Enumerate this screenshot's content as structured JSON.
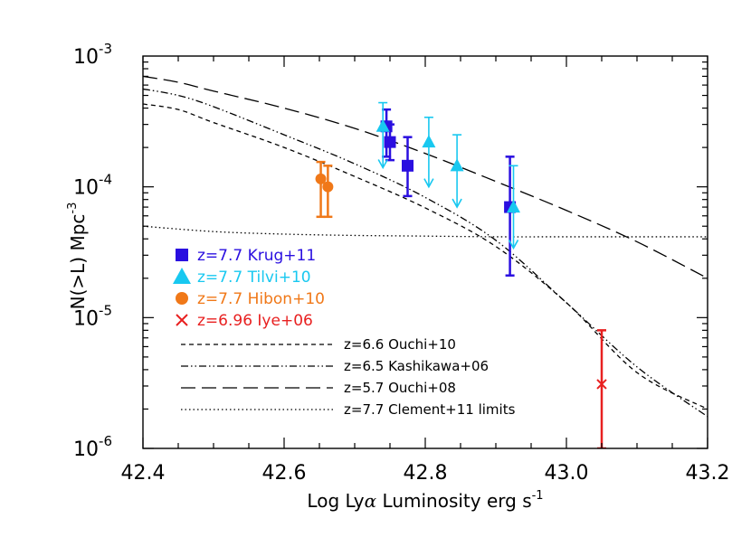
{
  "chart_data": {
    "type": "scatter",
    "xlabel_prefix": "Log Ly",
    "xlabel_greek": "α",
    "xlabel_suffix": " Luminosity erg s",
    "xlabel_exp": "-1",
    "ylabel_main": "N(>L) Mpc",
    "ylabel_exp": "-3",
    "xlim": [
      42.4,
      43.2
    ],
    "ylim_log10": [
      -6,
      -3
    ],
    "x_ticks": [
      {
        "value": 42.4,
        "label": "42.4"
      },
      {
        "value": 42.6,
        "label": "42.6"
      },
      {
        "value": 42.8,
        "label": "42.8"
      },
      {
        "value": 43.0,
        "label": "43.0"
      },
      {
        "value": 43.2,
        "label": "43.2"
      }
    ],
    "y_ticks": [
      {
        "exp": -3,
        "base": "10",
        "sup": "-3"
      },
      {
        "exp": -4,
        "base": "10",
        "sup": "-4"
      },
      {
        "exp": -5,
        "base": "10",
        "sup": "-5"
      },
      {
        "exp": -6,
        "base": "10",
        "sup": "-6"
      }
    ],
    "point_series": [
      {
        "name": "z=7.7 Krug+11",
        "marker": "square",
        "color": "#2a0fe0",
        "points": [
          {
            "x": 42.745,
            "y": 0.00029,
            "lo": 0.00017,
            "hi": 0.00039
          },
          {
            "x": 42.75,
            "y": 0.00022,
            "lo": 0.00016,
            "hi": 0.0003
          },
          {
            "x": 42.775,
            "y": 0.000145,
            "lo": 8.5e-05,
            "hi": 0.00024
          },
          {
            "x": 42.92,
            "y": 7e-05,
            "lo": 2.1e-05,
            "hi": 0.00017
          }
        ]
      },
      {
        "name": "z=7.7 Tilvi+10",
        "marker": "triangle",
        "color": "#18c8f0",
        "points": [
          {
            "x": 42.74,
            "y": 0.00029,
            "lo": 0.00014,
            "hi": 0.00044,
            "upper_limit": true
          },
          {
            "x": 42.805,
            "y": 0.00022,
            "lo": 0.0001,
            "hi": 0.00034,
            "upper_limit": true
          },
          {
            "x": 42.845,
            "y": 0.000145,
            "lo": 7e-05,
            "hi": 0.00025,
            "upper_limit": true
          },
          {
            "x": 42.925,
            "y": 7e-05,
            "lo": 3.4e-05,
            "hi": 0.000145,
            "upper_limit": true
          }
        ]
      },
      {
        "name": "z=7.7 Hibon+10",
        "marker": "circle",
        "color": "#f07818",
        "points": [
          {
            "x": 42.652,
            "y": 0.000115,
            "lo": 5.9e-05,
            "hi": 0.000155
          },
          {
            "x": 42.662,
            "y": 0.0001,
            "lo": 5.9e-05,
            "hi": 0.000145
          }
        ]
      },
      {
        "name": "z=6.96 Iye+06",
        "marker": "x",
        "color": "#e82020",
        "points": [
          {
            "x": 43.05,
            "y": 3.1e-06,
            "lo": 1e-06,
            "hi": 8e-06
          }
        ]
      }
    ],
    "line_series": [
      {
        "name": "z=6.6 Ouchi+10",
        "style": "short-dash",
        "x": [
          42.4,
          42.45,
          42.5,
          42.6,
          42.7,
          42.8,
          42.9,
          43.0,
          43.1,
          43.2
        ],
        "y": [
          0.00043,
          0.00039,
          0.00031,
          0.0002,
          0.00012,
          6.9e-05,
          3.5e-05,
          1.3e-05,
          3.8e-06,
          2e-06
        ]
      },
      {
        "name": "z=6.5 Kashikawa+06",
        "style": "dash-dot-dot",
        "x": [
          42.4,
          42.45,
          42.5,
          42.6,
          42.7,
          42.8,
          42.9,
          43.0,
          43.1,
          43.2
        ],
        "y": [
          0.00056,
          0.0005,
          0.00041,
          0.00025,
          0.00015,
          8.3e-05,
          3.9e-05,
          1.3e-05,
          4.2e-06,
          1.75e-06
        ]
      },
      {
        "name": "z=5.7 Ouchi+08",
        "style": "long-dash",
        "x": [
          42.4,
          42.45,
          42.5,
          42.6,
          42.7,
          42.8,
          42.9,
          43.0,
          43.1,
          43.2
        ],
        "y": [
          0.0007,
          0.00063,
          0.00054,
          0.0004,
          0.00028,
          0.00018,
          0.00011,
          6.6e-05,
          3.8e-05,
          2e-05
        ]
      },
      {
        "name": "z=7.7 Clement+11 limits",
        "style": "dotted",
        "x": [
          42.4,
          42.5,
          42.6,
          42.7,
          42.8,
          42.9,
          43.0,
          43.1,
          43.2
        ],
        "y": [
          5e-05,
          4.55e-05,
          4.35e-05,
          4.25e-05,
          4.2e-05,
          4.15e-05,
          4.15e-05,
          4.15e-05,
          4.15e-05
        ]
      }
    ]
  }
}
